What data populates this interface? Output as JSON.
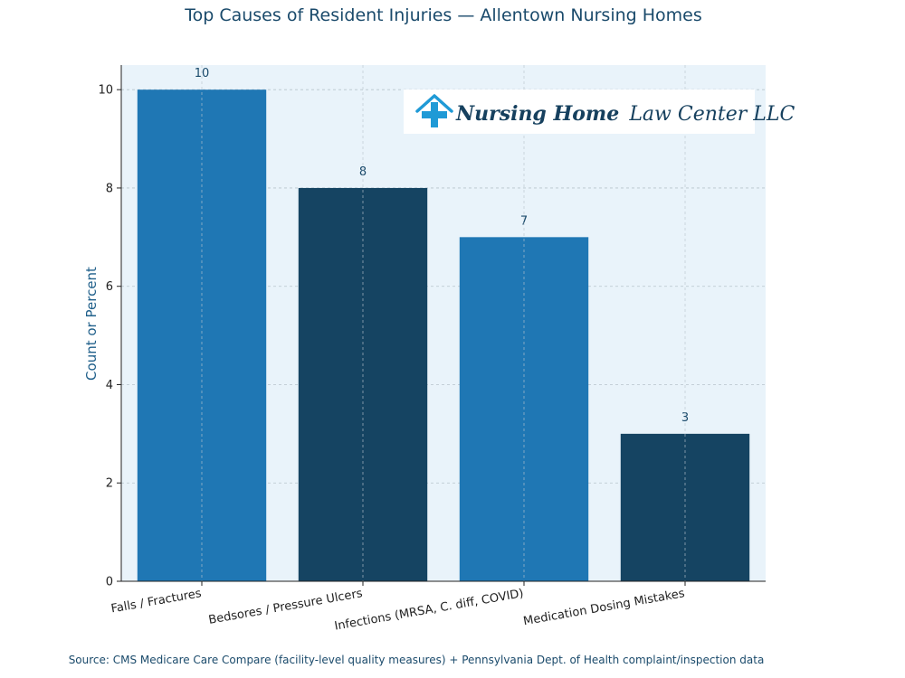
{
  "chart_data": {
    "type": "bar",
    "title": "Top Causes of Resident Injuries — Allentown Nursing Homes",
    "xlabel": "",
    "ylabel": "Count or Percent",
    "categories": [
      "Falls / Fractures",
      "Bedsores / Pressure Ulcers",
      "Infections (MRSA, C. diff, COVID)",
      "Medication Dosing Mistakes"
    ],
    "values": [
      10,
      8,
      7,
      3
    ],
    "data_labels": [
      "10",
      "8",
      "7",
      "3"
    ],
    "yticks": [
      0,
      2,
      4,
      6,
      8,
      10
    ],
    "ylim": [
      0,
      10.5
    ],
    "grid": true,
    "bar_colors": [
      "#1f77b4",
      "#154462",
      "#1f77b4",
      "#154462"
    ],
    "plot_background": "#e9f3fa",
    "source": "Source: CMS Medicare Care Compare (facility-level quality measures) + Pennsylvania Dept. of Health complaint/inspection data"
  },
  "logo": {
    "name_bold": "Nursing Home",
    "name_light": "Law Center LLC",
    "icon": "house-medical-cross-icon",
    "icon_color": "#1f9ad6"
  }
}
